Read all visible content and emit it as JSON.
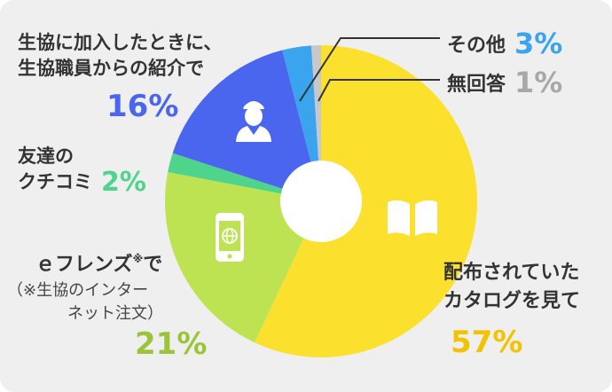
{
  "chart_data": {
    "type": "pie",
    "slices": [
      {
        "label": "配布されていたカタログを見て",
        "value": 57,
        "percent": "57%",
        "color": "#fbe02d"
      },
      {
        "label": "ｅフレンズ※で（※生協のインターネット注文）",
        "value": 21,
        "percent": "21%",
        "color": "#bde352"
      },
      {
        "label": "友達のクチコミ",
        "value": 2,
        "percent": "2%",
        "color": "#4fd48c"
      },
      {
        "label": "生協に加入したときに、生協職員からの紹介で",
        "value": 16,
        "percent": "16%",
        "color": "#4a66ee"
      },
      {
        "label": "その他",
        "value": 3,
        "percent": "3%",
        "color": "#3aa4ef"
      },
      {
        "label": "無回答",
        "value": 1,
        "percent": "1%",
        "color": "#c8c8c8"
      }
    ]
  },
  "labels": {
    "flyer": {
      "line1": "配布されていた",
      "line2": "カタログを見て",
      "pct": "57%"
    },
    "efriends": {
      "title": "ｅフレンズ",
      "mark": "※",
      "suffix": "で",
      "note1": "（※生協のインター",
      "note2": "ネット注文）",
      "pct": "21%"
    },
    "word": {
      "line1": "友達の",
      "line2": "クチコミ",
      "pct": "2%"
    },
    "staff": {
      "line1": "生協に加入したときに、",
      "line2": "生協職員からの紹介で",
      "pct": "16%"
    },
    "other": {
      "text": "その他",
      "pct": "3%"
    },
    "none": {
      "text": "無回答",
      "pct": "1%"
    }
  },
  "icons": {
    "flyer": "book-icon",
    "efriends": "smartphone-icon",
    "staff": "staff-person-icon"
  }
}
